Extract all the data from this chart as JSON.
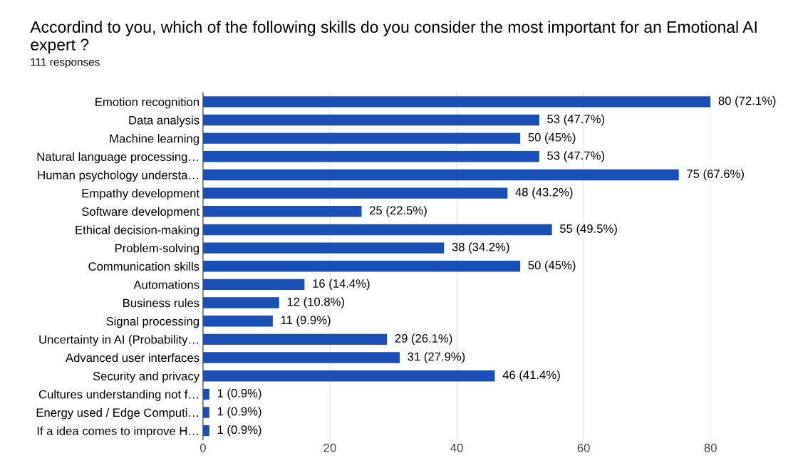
{
  "chart_data": {
    "type": "bar",
    "orientation": "horizontal",
    "title": "Accordind to you, which of the following skills do you consider the most important for an Emotional AI expert ?",
    "subtitle": "111 responses",
    "categories": [
      "Emotion recognition",
      "Data analysis",
      "Machine learning",
      "Natural language processing…",
      "Human psychology understa…",
      "Empathy development",
      "Software development",
      "Ethical decision-making",
      "Problem-solving",
      "Communication skills",
      "Automations",
      "Business rules",
      "Signal processing",
      "Uncertainty in AI (Probability…",
      "Advanced user interfaces",
      "Security and privacy",
      "Cultures understanding not f…",
      "Energy used / Edge Computi…",
      "If a idea comes to improve H…"
    ],
    "values": [
      80,
      53,
      50,
      53,
      75,
      48,
      25,
      55,
      38,
      50,
      16,
      12,
      11,
      29,
      31,
      46,
      1,
      1,
      1
    ],
    "value_labels": [
      "80 (72.1%)",
      "53 (47.7%)",
      "50 (45%)",
      "53 (47.7%)",
      "75 (67.6%)",
      "48 (43.2%)",
      "25 (22.5%)",
      "55 (49.5%)",
      "38 (34.2%)",
      "50 (45%)",
      "16 (14.4%)",
      "12 (10.8%)",
      "11 (9.9%)",
      "29 (26.1%)",
      "31 (27.9%)",
      "46 (41.4%)",
      "1 (0.9%)",
      "1 (0.9%)",
      "1 (0.9%)"
    ],
    "color": "#1a4fb5",
    "xlim": [
      0,
      80
    ],
    "xticks": [
      0,
      20,
      40,
      60,
      80
    ],
    "grid": "x"
  }
}
